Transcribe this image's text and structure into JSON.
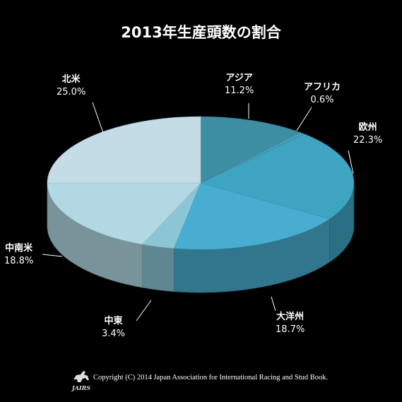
{
  "chart_data": {
    "type": "pie",
    "title": "2013年生産頭数の割合",
    "categories": [
      "アジア",
      "アフリカ",
      "欧州",
      "大洋州",
      "中東",
      "中南米",
      "北米"
    ],
    "values": [
      11.2,
      0.6,
      22.3,
      18.7,
      3.4,
      18.8,
      25.0
    ],
    "value_labels": [
      "11.2%",
      "0.6%",
      "22.3%",
      "18.7%",
      "3.4%",
      "18.8%",
      "25.0%"
    ],
    "colors": [
      "#3d8da3",
      "#4a9db4",
      "#3fa3c2",
      "#48add0",
      "#8cc6d6",
      "#b2d8e3",
      "#c3dce6"
    ],
    "style": "3d",
    "legend": "none"
  },
  "footer": {
    "copyright": "Copyright (C) 2014 Japan Association for International Racing and Stud Book.",
    "logo_text": "JAIRS"
  }
}
